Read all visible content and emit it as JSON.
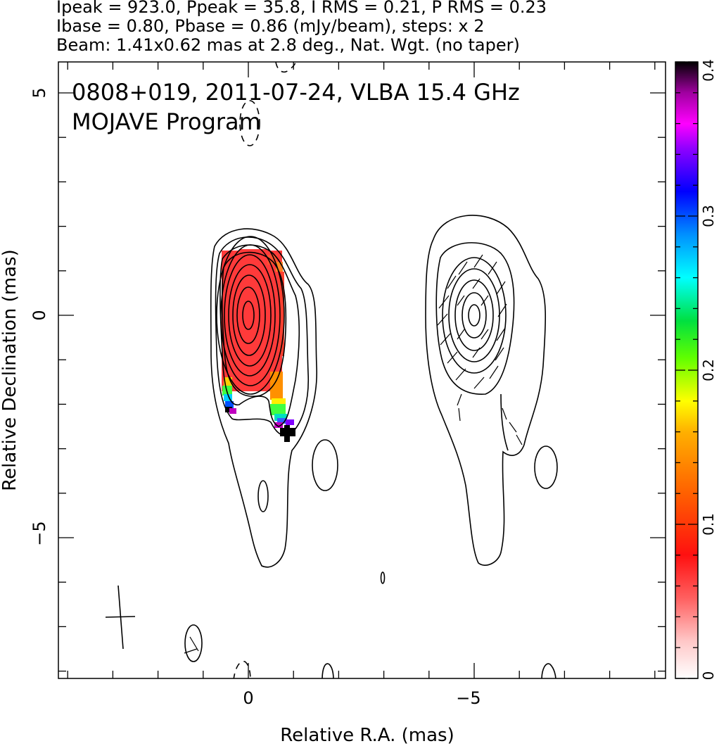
{
  "header": {
    "line1": "Ipeak = 923.0, Ppeak = 35.8, I RMS = 0.21, P RMS = 0.23",
    "line2": "Ibase = 0.80, Pbase = 0.86 (mJy/beam), steps: x 2",
    "line3": "Beam: 1.41x0.62 mas at 2.8 deg., Nat. Wgt. (no taper)"
  },
  "chart_data": {
    "type": "heatmap",
    "title": "0808+019, 2011-07-24, VLBA 15.4 GHz",
    "subtitle": "MOJAVE Program",
    "xlabel": "Relative R.A. (mas)",
    "ylabel": "Relative Declination (mas)",
    "xlim": [
      4.3,
      -9.5
    ],
    "ylim": [
      -8.2,
      5.8
    ],
    "x_ticks": [
      {
        "value": 0,
        "label": "0"
      },
      {
        "value": -5,
        "label": "−5"
      }
    ],
    "y_ticks": [
      {
        "value": 5,
        "label": "5"
      },
      {
        "value": 0,
        "label": "0"
      },
      {
        "value": -5,
        "label": "−5"
      }
    ],
    "colorbar": {
      "range": [
        0,
        0.4
      ],
      "ticks": [
        {
          "value": 0,
          "label": "0"
        },
        {
          "value": 0.1,
          "label": "0.1"
        },
        {
          "value": 0.2,
          "label": "0.2"
        },
        {
          "value": 0.3,
          "label": "0.3"
        },
        {
          "value": 0.4,
          "label": "0.4"
        }
      ]
    },
    "panels": [
      {
        "name": "left",
        "center": [
          0,
          0
        ]
      },
      {
        "name": "right",
        "center": [
          -5,
          0
        ]
      }
    ],
    "contour_levels_mjy": [
      0.8,
      1.6,
      3.2,
      6.4,
      12.8,
      25.6,
      51.2,
      102.4,
      204.8,
      409.6,
      819.2
    ],
    "grid": false
  }
}
